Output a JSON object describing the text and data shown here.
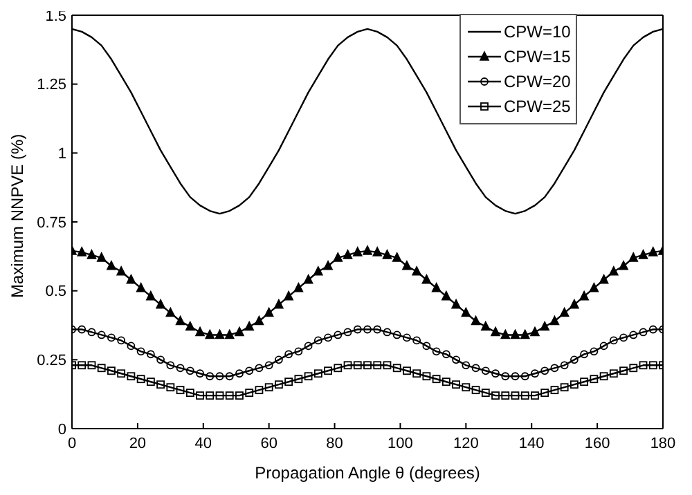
{
  "chart_data": {
    "type": "line",
    "xlabel": "Propagation Angle θ (degrees)",
    "ylabel": "Maximum NNPVE (%)",
    "x": [
      0,
      3,
      6,
      9,
      12,
      15,
      18,
      21,
      24,
      27,
      30,
      33,
      36,
      39,
      42,
      45,
      48,
      51,
      54,
      57,
      60,
      63,
      66,
      69,
      72,
      75,
      78,
      81,
      84,
      87,
      90,
      93,
      96,
      99,
      102,
      105,
      108,
      111,
      114,
      117,
      120,
      123,
      126,
      129,
      132,
      135,
      138,
      141,
      144,
      147,
      150,
      153,
      156,
      159,
      162,
      165,
      168,
      171,
      174,
      177,
      180
    ],
    "series": [
      {
        "name": "CPW=10",
        "color": "#000000",
        "marker": "none",
        "values": [
          1.45,
          1.44,
          1.42,
          1.39,
          1.34,
          1.28,
          1.22,
          1.15,
          1.08,
          1.01,
          0.95,
          0.89,
          0.84,
          0.81,
          0.79,
          0.78,
          0.79,
          0.81,
          0.84,
          0.89,
          0.95,
          1.01,
          1.08,
          1.15,
          1.22,
          1.28,
          1.34,
          1.39,
          1.42,
          1.44,
          1.45,
          1.44,
          1.42,
          1.39,
          1.34,
          1.28,
          1.22,
          1.15,
          1.08,
          1.01,
          0.95,
          0.89,
          0.84,
          0.81,
          0.79,
          0.78,
          0.79,
          0.81,
          0.84,
          0.89,
          0.95,
          1.01,
          1.08,
          1.15,
          1.22,
          1.28,
          1.34,
          1.39,
          1.42,
          1.44,
          1.45
        ]
      },
      {
        "name": "CPW=15",
        "color": "#000000",
        "marker": "triangle",
        "values": [
          0.645,
          0.64,
          0.63,
          0.62,
          0.59,
          0.57,
          0.54,
          0.51,
          0.48,
          0.45,
          0.42,
          0.39,
          0.37,
          0.35,
          0.34,
          0.34,
          0.34,
          0.35,
          0.37,
          0.39,
          0.42,
          0.45,
          0.48,
          0.51,
          0.54,
          0.57,
          0.59,
          0.62,
          0.63,
          0.64,
          0.645,
          0.64,
          0.63,
          0.62,
          0.59,
          0.57,
          0.54,
          0.51,
          0.48,
          0.45,
          0.42,
          0.39,
          0.37,
          0.35,
          0.34,
          0.34,
          0.34,
          0.35,
          0.37,
          0.39,
          0.42,
          0.45,
          0.48,
          0.51,
          0.54,
          0.57,
          0.59,
          0.62,
          0.63,
          0.64,
          0.645
        ]
      },
      {
        "name": "CPW=20",
        "color": "#000000",
        "marker": "circle",
        "values": [
          0.36,
          0.36,
          0.35,
          0.34,
          0.33,
          0.32,
          0.3,
          0.28,
          0.27,
          0.25,
          0.23,
          0.22,
          0.21,
          0.2,
          0.19,
          0.19,
          0.19,
          0.2,
          0.21,
          0.22,
          0.23,
          0.25,
          0.27,
          0.28,
          0.3,
          0.32,
          0.33,
          0.34,
          0.35,
          0.36,
          0.36,
          0.36,
          0.35,
          0.34,
          0.33,
          0.32,
          0.3,
          0.28,
          0.27,
          0.25,
          0.23,
          0.22,
          0.21,
          0.2,
          0.19,
          0.19,
          0.19,
          0.2,
          0.21,
          0.22,
          0.23,
          0.25,
          0.27,
          0.28,
          0.3,
          0.32,
          0.33,
          0.34,
          0.35,
          0.36,
          0.36
        ]
      },
      {
        "name": "CPW=25",
        "color": "#000000",
        "marker": "square",
        "values": [
          0.23,
          0.23,
          0.23,
          0.22,
          0.21,
          0.2,
          0.19,
          0.18,
          0.17,
          0.16,
          0.15,
          0.14,
          0.13,
          0.12,
          0.12,
          0.12,
          0.12,
          0.12,
          0.13,
          0.14,
          0.15,
          0.16,
          0.17,
          0.18,
          0.19,
          0.2,
          0.21,
          0.22,
          0.23,
          0.23,
          0.23,
          0.23,
          0.23,
          0.22,
          0.21,
          0.2,
          0.19,
          0.18,
          0.17,
          0.16,
          0.15,
          0.14,
          0.13,
          0.12,
          0.12,
          0.12,
          0.12,
          0.12,
          0.13,
          0.14,
          0.15,
          0.16,
          0.17,
          0.18,
          0.19,
          0.2,
          0.21,
          0.22,
          0.23,
          0.23,
          0.23
        ]
      }
    ],
    "xlim": [
      0,
      180
    ],
    "xticks": [
      0,
      20,
      40,
      60,
      80,
      100,
      120,
      140,
      160,
      180
    ],
    "ylim": [
      0,
      1.5
    ],
    "yticks": [
      0,
      0.25,
      0.5,
      0.75,
      1,
      1.25,
      1.5
    ],
    "grid": false,
    "legend": "top right"
  }
}
